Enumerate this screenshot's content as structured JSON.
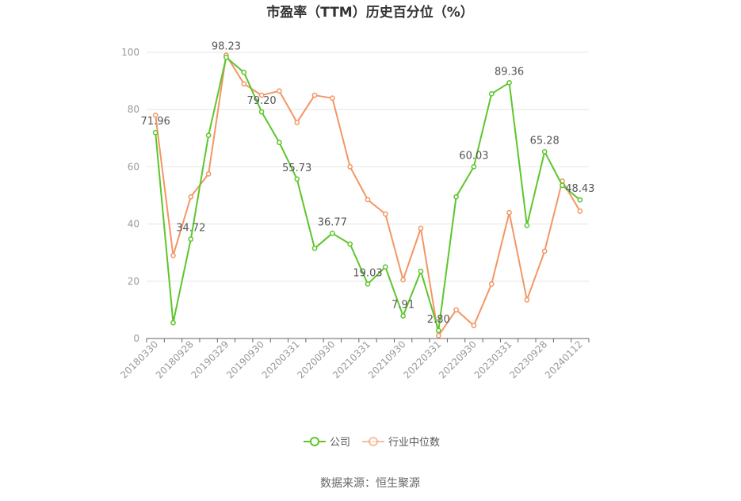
{
  "chart_data": {
    "type": "line",
    "title": "市盈率（TTM）历史百分位（%）",
    "ylim": [
      0,
      100
    ],
    "yticks": [
      0,
      20,
      40,
      60,
      80,
      100
    ],
    "grid": true,
    "legend_position": "bottom",
    "x_tick_labels": [
      "20180330",
      "20180928",
      "20190329",
      "20190930",
      "20200331",
      "20200930",
      "20210331",
      "20210930",
      "20220331",
      "20220930",
      "20230331",
      "20230928",
      "20240112"
    ],
    "series": [
      {
        "name": "公司",
        "color": "#5cc62a",
        "values": [
          71.96,
          5.5,
          34.72,
          71.0,
          98.23,
          93.0,
          79.2,
          68.5,
          55.73,
          31.5,
          36.77,
          33.0,
          19.03,
          25.0,
          7.91,
          23.5,
          2.8,
          49.5,
          60.03,
          85.5,
          89.36,
          39.5,
          65.28,
          53.5,
          48.43
        ],
        "labels": {
          "0": "71.96",
          "2": "34.72",
          "4": "98.23",
          "6": "79.20",
          "8": "55.73",
          "10": "36.77",
          "12": "19.03",
          "14": "7.91",
          "16": "2.80",
          "18": "60.03",
          "20": "89.36",
          "22": "65.28",
          "24": "48.43"
        }
      },
      {
        "name": "行业中位数",
        "color": "#f39664",
        "values": [
          78.0,
          29.0,
          49.5,
          57.5,
          99.0,
          89.0,
          85.0,
          86.5,
          75.5,
          85.0,
          84.0,
          60.0,
          48.5,
          43.5,
          20.5,
          38.5,
          1.0,
          10.0,
          4.5,
          19.0,
          44.0,
          13.5,
          30.5,
          55.0,
          44.5
        ]
      }
    ]
  },
  "source_text": "数据来源：恒生聚源"
}
